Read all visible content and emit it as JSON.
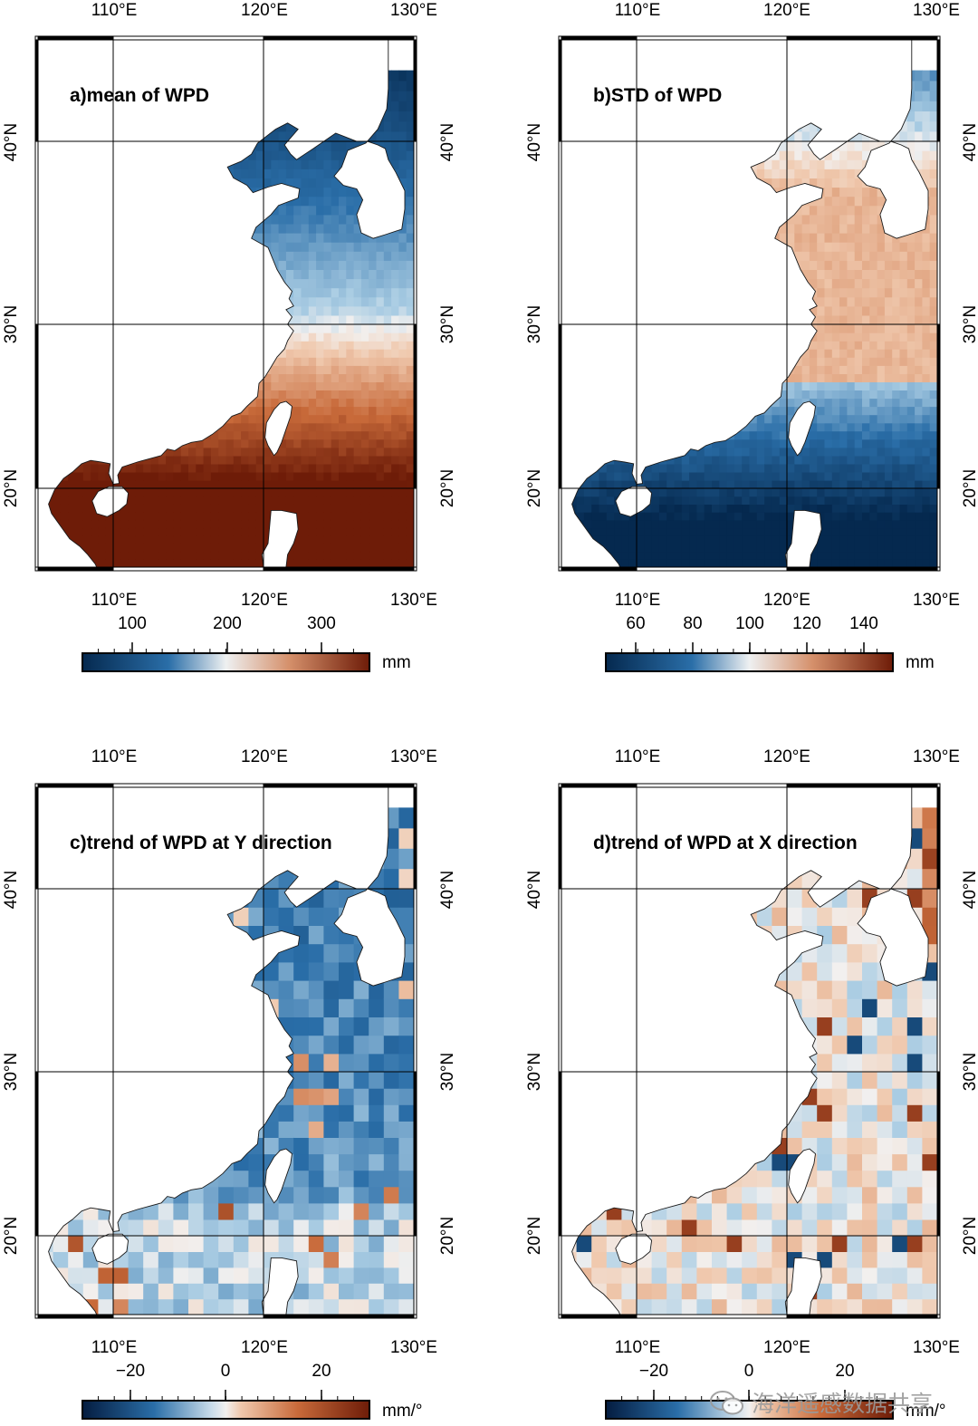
{
  "panels": [
    {
      "id": "a",
      "title": "a)mean of WPD",
      "palette": "mean",
      "top_lon_labels": [
        "110°E",
        "120°E",
        "130°E"
      ],
      "bottom_lon_labels": [
        "110°E",
        "120°E",
        "130°E"
      ],
      "lat_labels": [
        "40°N",
        "30°N",
        "20°N"
      ],
      "colorbar": {
        "labels": [
          "100",
          "200",
          "300"
        ],
        "unit": "mm",
        "range": [
          50,
          350
        ]
      }
    },
    {
      "id": "b",
      "title": "b)STD of WPD",
      "palette": "std",
      "top_lon_labels": [
        "110°E",
        "120°E",
        "130°E"
      ],
      "bottom_lon_labels": [
        "110°E",
        "120°E",
        "130°E"
      ],
      "lat_labels": [
        "40°N",
        "30°N",
        "20°N"
      ],
      "colorbar": {
        "labels": [
          "60",
          "80",
          "100",
          "120",
          "140"
        ],
        "unit": "mm",
        "range": [
          50,
          150
        ]
      }
    },
    {
      "id": "c",
      "title": "c)trend of WPD at Y direction",
      "palette": "trend_y",
      "top_lon_labels": [
        "110°E",
        "120°E",
        "130°E"
      ],
      "bottom_lon_labels": [
        "110°E",
        "120°E",
        "130°E"
      ],
      "lat_labels": [
        "40°N",
        "30°N",
        "20°N"
      ],
      "colorbar": {
        "labels": [
          "−20",
          "0",
          "20"
        ],
        "unit": "mm/°",
        "range": [
          -30,
          30
        ]
      }
    },
    {
      "id": "d",
      "title": "d)trend of WPD at X direction",
      "palette": "trend_x",
      "top_lon_labels": [
        "110°E",
        "120°E",
        "130°E"
      ],
      "bottom_lon_labels": [
        "110°E",
        "120°E",
        "130°E"
      ],
      "lat_labels": [
        "40°N",
        "30°N",
        "20°N"
      ],
      "colorbar": {
        "labels": [
          "−20",
          "0",
          "20"
        ],
        "unit": "mm/°",
        "range": [
          -30,
          30
        ]
      }
    }
  ],
  "map_extent": {
    "lon_min": 105,
    "lon_max": 130,
    "lat_min": 15,
    "lat_max": 45
  },
  "colors": {
    "dark_blue": "#05294f",
    "mid_blue": "#2a6ea8",
    "light_blue": "#a9cce3",
    "neutral": "#f2f0ef",
    "light_orange": "#f0c9ae",
    "orange": "#c86a3a",
    "dark_red": "#6e1c08",
    "land": "#ffffff",
    "frame": "#000000"
  },
  "watermark": {
    "text": "海洋遥感数据共享",
    "icon": "wechat-icon"
  }
}
